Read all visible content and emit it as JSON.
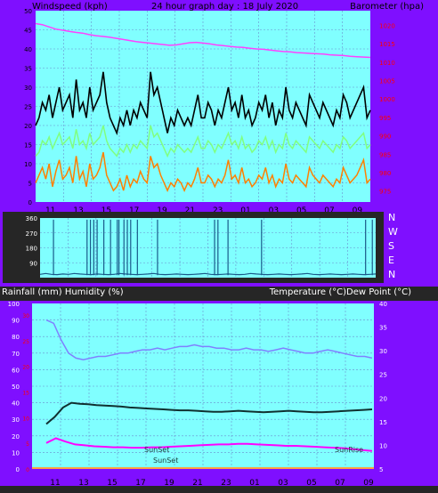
{
  "colors": {
    "background": "#7f0fff",
    "plot_bg": "#80ffff",
    "grid": "#6a8fd0",
    "dark_band": "#262626",
    "wind_gust": "#000000",
    "wind_avg": "#80ff80",
    "wind_lowest": "#ff8000",
    "barometer": "#ff40ff",
    "direction": "#1a5a8a",
    "humidity": "#8080ff",
    "temperature": "#103030",
    "dew_point": "#ff00ff",
    "axis_text": "#000000",
    "right_axis_text": "#ff0000"
  },
  "chart_data": [
    {
      "type": "line",
      "title": "24 hour graph day : 18 July 2020",
      "ylabel": "Windspeed (kph)",
      "y2label": "Barometer (hpa)",
      "ylim": [
        0,
        50
      ],
      "y2lim": [
        972,
        1024
      ],
      "grid": true,
      "yticks": [
        "0",
        "5",
        "10",
        "15",
        "20",
        "25",
        "30",
        "35",
        "40",
        "45",
        "50"
      ],
      "y2ticks": [
        "975",
        "980",
        "985",
        "990",
        "995",
        "1000",
        "1005",
        "1010",
        "1015",
        "1020"
      ],
      "xticks": [
        "11",
        "13",
        "15",
        "17",
        "19",
        "21",
        "23",
        "01",
        "03",
        "05",
        "07",
        "09"
      ],
      "series": [
        {
          "key": "gust",
          "values": [
            20,
            22,
            26,
            24,
            28,
            22,
            26,
            30,
            24,
            26,
            28,
            22,
            32,
            24,
            26,
            22,
            30,
            24,
            26,
            28,
            34,
            26,
            22,
            20,
            18,
            22,
            20,
            24,
            20,
            24,
            22,
            26,
            24,
            22,
            34,
            28,
            30,
            26,
            22,
            18,
            22,
            20,
            24,
            22,
            20,
            22,
            20,
            24,
            28,
            22,
            22,
            26,
            24,
            20,
            24,
            22,
            26,
            30,
            24,
            26,
            22,
            28,
            22,
            24,
            20,
            22,
            26,
            24,
            28,
            22,
            26,
            20,
            24,
            22,
            30,
            24,
            22,
            26,
            24,
            22,
            20,
            28,
            26,
            24,
            22,
            26,
            24,
            22,
            20,
            24,
            22,
            28,
            26,
            22,
            24,
            26,
            28,
            30,
            22,
            24
          ]
        },
        {
          "key": "average",
          "values": [
            12,
            13,
            16,
            15,
            17,
            14,
            16,
            18,
            15,
            16,
            17,
            14,
            19,
            15,
            16,
            14,
            18,
            15,
            16,
            17,
            20,
            16,
            14,
            13,
            12,
            14,
            13,
            15,
            13,
            15,
            14,
            16,
            15,
            14,
            20,
            17,
            18,
            16,
            14,
            12,
            14,
            13,
            15,
            14,
            13,
            14,
            13,
            15,
            17,
            14,
            14,
            16,
            15,
            13,
            15,
            14,
            16,
            18,
            15,
            16,
            14,
            17,
            14,
            15,
            13,
            14,
            16,
            15,
            17,
            14,
            16,
            13,
            15,
            14,
            18,
            15,
            14,
            16,
            15,
            14,
            13,
            17,
            16,
            15,
            14,
            16,
            15,
            14,
            13,
            15,
            14,
            17,
            16,
            14,
            15,
            16,
            17,
            18,
            14,
            15
          ]
        },
        {
          "key": "lowest",
          "values": [
            5,
            7,
            9,
            6,
            10,
            4,
            8,
            11,
            6,
            7,
            9,
            5,
            12,
            6,
            8,
            4,
            10,
            6,
            7,
            9,
            13,
            7,
            5,
            3,
            4,
            6,
            3,
            7,
            4,
            6,
            5,
            8,
            6,
            5,
            12,
            9,
            10,
            7,
            5,
            3,
            5,
            4,
            6,
            5,
            3,
            5,
            4,
            6,
            9,
            5,
            5,
            7,
            6,
            4,
            6,
            5,
            7,
            11,
            6,
            7,
            5,
            9,
            5,
            6,
            4,
            5,
            7,
            6,
            9,
            5,
            7,
            4,
            6,
            5,
            10,
            6,
            5,
            7,
            6,
            5,
            4,
            9,
            7,
            6,
            5,
            7,
            6,
            5,
            4,
            6,
            5,
            9,
            7,
            5,
            6,
            7,
            9,
            11,
            5,
            6
          ]
        },
        {
          "key": "barometer",
          "values": [
            1020.5,
            1020.2,
            1019.6,
            1019.0,
            1018.7,
            1018.4,
            1018.1,
            1017.9,
            1017.5,
            1017.2,
            1017.0,
            1016.8,
            1016.5,
            1016.2,
            1015.9,
            1015.6,
            1015.4,
            1015.2,
            1015.0,
            1014.8,
            1014.6,
            1014.7,
            1015.0,
            1015.3,
            1015.4,
            1015.2,
            1015.0,
            1014.7,
            1014.5,
            1014.3,
            1014.1,
            1014.0,
            1013.8,
            1013.6,
            1013.5,
            1013.3,
            1013.1,
            1012.9,
            1012.8,
            1012.6,
            1012.5,
            1012.4,
            1012.3,
            1012.2,
            1012.0,
            1011.9,
            1011.8,
            1011.6,
            1011.5,
            1011.4,
            1011.3
          ]
        }
      ]
    },
    {
      "type": "line",
      "ylim": [
        0,
        360
      ],
      "yticks": [
        "90",
        "180",
        "270",
        "360"
      ],
      "compass": [
        "N",
        "W",
        "S",
        "E",
        "N"
      ],
      "series": [
        {
          "key": "direction",
          "values": [
            20,
            25,
            20,
            18,
            22,
            20,
            25,
            22,
            20,
            18,
            22,
            20,
            18,
            20,
            25,
            22,
            20,
            18,
            20,
            22,
            25,
            20,
            18,
            20,
            22,
            20,
            18,
            20,
            22,
            25,
            20,
            18,
            20,
            22,
            20,
            18,
            20,
            25,
            22,
            20,
            18,
            20,
            22,
            20,
            18,
            20,
            22,
            25,
            20,
            18,
            20,
            22,
            20,
            18,
            20,
            22,
            20,
            18,
            20,
            22
          ]
        }
      ]
    },
    {
      "type": "line",
      "ylabel": "Rainfall (mm)  Humidity (%)",
      "y2label": "Temperature (°C)Dew Point (°C)",
      "ylim": [
        0,
        100
      ],
      "y2lim": [
        5,
        40
      ],
      "grid": true,
      "yticks": [
        "0",
        "10",
        "20",
        "30",
        "40",
        "50",
        "60",
        "70",
        "80",
        "90",
        "100"
      ],
      "y2ticks": [
        "5",
        "10",
        "15",
        "20",
        "25",
        "30",
        "35",
        "40"
      ],
      "rain_ticks": [
        "0",
        "5",
        "10",
        "15",
        "20",
        "25",
        "30"
      ],
      "xticks": [
        "11",
        "13",
        "15",
        "17",
        "19",
        "21",
        "23",
        "01",
        "03",
        "05",
        "07",
        "09"
      ],
      "annotations": [
        "SunSet",
        "SunSet",
        "SunRise"
      ],
      "series": [
        {
          "key": "humidity",
          "values": [
            90,
            88,
            78,
            70,
            67,
            66,
            67,
            68,
            68,
            69,
            70,
            70,
            71,
            72,
            72,
            73,
            72,
            73,
            74,
            74,
            75,
            74,
            74,
            73,
            73,
            72,
            72,
            73,
            72,
            72,
            71,
            72,
            73,
            72,
            71,
            70,
            70,
            71,
            72,
            71,
            70,
            69,
            68,
            68,
            67
          ]
        },
        {
          "key": "temperature",
          "values": [
            14.5,
            16.0,
            18.0,
            19.0,
            18.8,
            18.7,
            18.5,
            18.4,
            18.3,
            18.2,
            18.0,
            17.9,
            17.8,
            17.7,
            17.6,
            17.5,
            17.4,
            17.4,
            17.3,
            17.2,
            17.1,
            17.1,
            17.2,
            17.3,
            17.2,
            17.1,
            17.0,
            17.1,
            17.2,
            17.3,
            17.2,
            17.1,
            17.0,
            17.0,
            17.1,
            17.2,
            17.3,
            17.4,
            17.5,
            17.6
          ]
        },
        {
          "key": "dew_point",
          "values": [
            10.5,
            11.5,
            10.8,
            10.2,
            10.0,
            9.8,
            9.7,
            9.6,
            9.6,
            9.5,
            9.5,
            9.6,
            9.6,
            9.7,
            9.8,
            9.9,
            10.0,
            10.1,
            10.2,
            10.2,
            10.3,
            10.3,
            10.2,
            10.1,
            10.0,
            9.9,
            9.9,
            9.8,
            9.7,
            9.6,
            9.5,
            9.4,
            9.2,
            9.0,
            8.8
          ]
        }
      ]
    }
  ]
}
